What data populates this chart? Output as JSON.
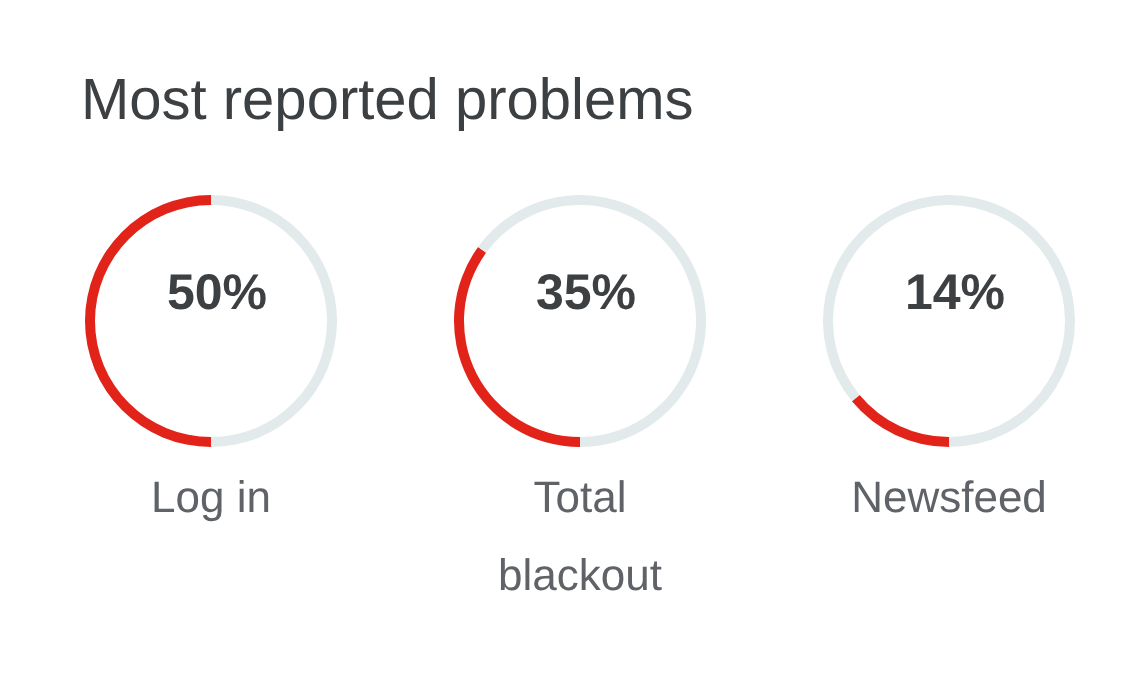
{
  "chart_data": [
    {
      "type": "other",
      "title": "Most reported problems"
    },
    {
      "type": "donut",
      "title": "Log in",
      "categories": [
        null,
        null
      ],
      "values": [
        50,
        50
      ],
      "colors": [
        "#e2231a",
        "#e3eaec"
      ],
      "annotations": [
        "50%"
      ]
    },
    {
      "type": "donut",
      "title": "Total\nblackout",
      "categories": [
        null,
        null
      ],
      "values": [
        35,
        65
      ],
      "colors": [
        "#e2231a",
        "#e3eaec"
      ],
      "annotations": [
        "35%"
      ]
    },
    {
      "type": "donut",
      "title": "Newsfeed",
      "categories": [
        null,
        null
      ],
      "values": [
        14,
        86
      ],
      "colors": [
        "#e2231a",
        "#e3eaec"
      ],
      "annotations": [
        "14%"
      ]
    }
  ]
}
